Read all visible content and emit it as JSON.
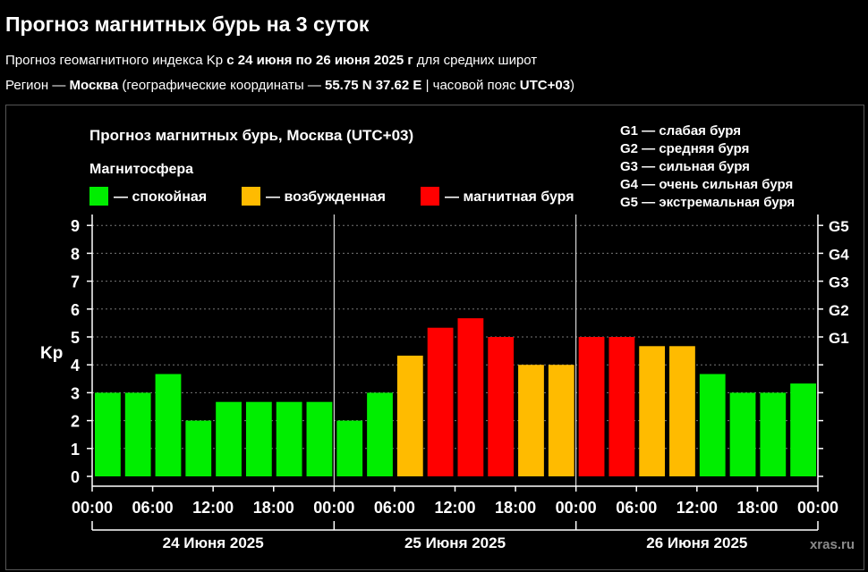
{
  "header": {
    "title": "Прогноз магнитных бурь на 3 суток",
    "line1": {
      "pre": "Прогноз геомагнитного индекса Kp ",
      "bold": "с 24 июня по 26 июня 2025 г",
      "post": " для средних широт"
    },
    "line2": {
      "pre": "Регион — ",
      "city": "Москва",
      "mid": " (географические координаты — ",
      "coords": "55.75 N 37.62 E",
      "sep": " | часовой пояс ",
      "tz": "UTC+03",
      "end": ")"
    }
  },
  "chart_data": {
    "type": "bar",
    "title": "Прогноз магнитных бурь, Москва (UTC+03)",
    "legend_title": "Магнитосфера",
    "legend": [
      {
        "label": "— спокойная",
        "color": "#00ee00"
      },
      {
        "label": "— возбужденная",
        "color": "#ffbb00"
      },
      {
        "label": "— магнитная буря",
        "color": "#ff0000"
      }
    ],
    "g_scale_legend": [
      "G1 — слабая буря",
      "G2 — средняя буря",
      "G3 — сильная буря",
      "G4 — очень сильная буря",
      "G5 — экстремальная буря"
    ],
    "ylabel": "Kp",
    "ylim": [
      0,
      9
    ],
    "y_ticks": [
      "0",
      "1",
      "2",
      "3",
      "4",
      "5",
      "6",
      "7",
      "8",
      "9"
    ],
    "g_levels": [
      {
        "label": "G1",
        "kp": 5
      },
      {
        "label": "G2",
        "kp": 6
      },
      {
        "label": "G3",
        "kp": 7
      },
      {
        "label": "G4",
        "kp": 8
      },
      {
        "label": "G5",
        "kp": 9
      }
    ],
    "x_ticks": [
      "00:00",
      "06:00",
      "12:00",
      "18:00",
      "00:00",
      "06:00",
      "12:00",
      "18:00",
      "00:00",
      "06:00",
      "12:00",
      "18:00",
      "00:00"
    ],
    "days": [
      "24 Июня 2025",
      "25 Июня 2025",
      "26 Июня 2025"
    ],
    "values": [
      3,
      3,
      3.67,
      2,
      2.67,
      2.67,
      2.67,
      2.67,
      2,
      3,
      4.33,
      5.33,
      5.67,
      5,
      4,
      4,
      5,
      5,
      4.67,
      4.67,
      3.67,
      3,
      3,
      3.33
    ],
    "colors": {
      "quiet": "#00ee00",
      "active": "#ffbb00",
      "storm": "#ff0000"
    },
    "grid": true
  },
  "watermark": "xras.ru"
}
